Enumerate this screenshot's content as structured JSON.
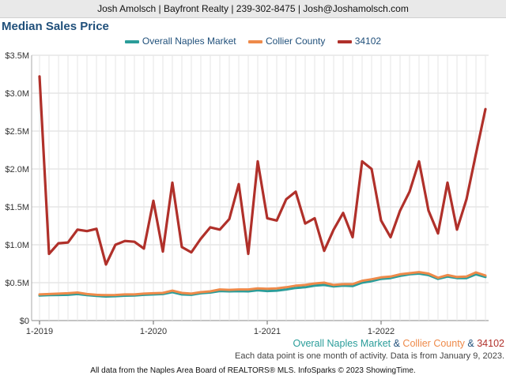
{
  "header": {
    "contact_line": "Josh Amolsch | Bayfront Realty | 239-302-8475 | Josh@Joshamolsch.com"
  },
  "colors": {
    "overall": "#2a9d9a",
    "collier": "#ee8a4a",
    "zip": "#b0302a",
    "title": "#1f4f7a"
  },
  "footer": {
    "series_naples": "Overall Naples Market",
    "amp1": " & ",
    "series_collier": "Collier County",
    "amp2": " & ",
    "series_zip": "34102",
    "note": "Each data point is one month of activity. Data is from January 9, 2023.",
    "source": "All data from the Naples Area Board of REALTORS® MLS. InfoSparks © 2023 ShowingTime."
  },
  "chart_data": {
    "type": "line",
    "title": "Median Sales Price",
    "xlabel": "",
    "ylabel": "",
    "ylim": [
      0,
      3500000
    ],
    "yticks": [
      {
        "value": 0,
        "label": "$0"
      },
      {
        "value": 500000,
        "label": "$0.5M"
      },
      {
        "value": 1000000,
        "label": "$1.0M"
      },
      {
        "value": 1500000,
        "label": "$1.5M"
      },
      {
        "value": 2000000,
        "label": "$2.0M"
      },
      {
        "value": 2500000,
        "label": "$2.5M"
      },
      {
        "value": 3000000,
        "label": "$3.0M"
      },
      {
        "value": 3500000,
        "label": "$3.5M"
      }
    ],
    "xticks": [
      "1-2019",
      "1-2020",
      "1-2021",
      "1-2022"
    ],
    "x_start": "2019-01",
    "x_end": "2022-12",
    "grid": true,
    "legend_position": "top-center",
    "series": [
      {
        "name": "Overall Naples Market",
        "color": "#2a9d9a",
        "values": [
          330000,
          335000,
          338000,
          340000,
          350000,
          335000,
          325000,
          318000,
          322000,
          328000,
          330000,
          340000,
          345000,
          350000,
          375000,
          345000,
          340000,
          360000,
          370000,
          390000,
          385000,
          388000,
          385000,
          400000,
          390000,
          395000,
          410000,
          430000,
          440000,
          460000,
          470000,
          450000,
          460000,
          455000,
          500000,
          520000,
          550000,
          560000,
          590000,
          610000,
          620000,
          600000,
          550000,
          580000,
          560000,
          560000,
          610000,
          575000
        ]
      },
      {
        "name": "Collier County",
        "color": "#ee8a4a",
        "values": [
          345000,
          350000,
          355000,
          360000,
          370000,
          350000,
          340000,
          335000,
          338000,
          345000,
          345000,
          355000,
          360000,
          365000,
          395000,
          365000,
          355000,
          375000,
          385000,
          410000,
          405000,
          410000,
          410000,
          425000,
          420000,
          425000,
          440000,
          460000,
          470000,
          490000,
          500000,
          470000,
          480000,
          480000,
          525000,
          545000,
          570000,
          580000,
          610000,
          625000,
          640000,
          620000,
          565000,
          600000,
          575000,
          580000,
          635000,
          595000
        ]
      },
      {
        "name": "34102",
        "color": "#b0302a",
        "values": [
          3220000,
          880000,
          1020000,
          1030000,
          1200000,
          1180000,
          1210000,
          740000,
          1000000,
          1050000,
          1040000,
          950000,
          1580000,
          910000,
          1820000,
          970000,
          900000,
          1080000,
          1230000,
          1200000,
          1340000,
          1800000,
          880000,
          2100000,
          1350000,
          1320000,
          1600000,
          1700000,
          1280000,
          1350000,
          920000,
          1200000,
          1420000,
          1100000,
          2100000,
          2000000,
          1320000,
          1100000,
          1450000,
          1700000,
          2100000,
          1450000,
          1150000,
          1820000,
          1200000,
          1600000,
          2200000,
          2790000
        ]
      }
    ]
  }
}
